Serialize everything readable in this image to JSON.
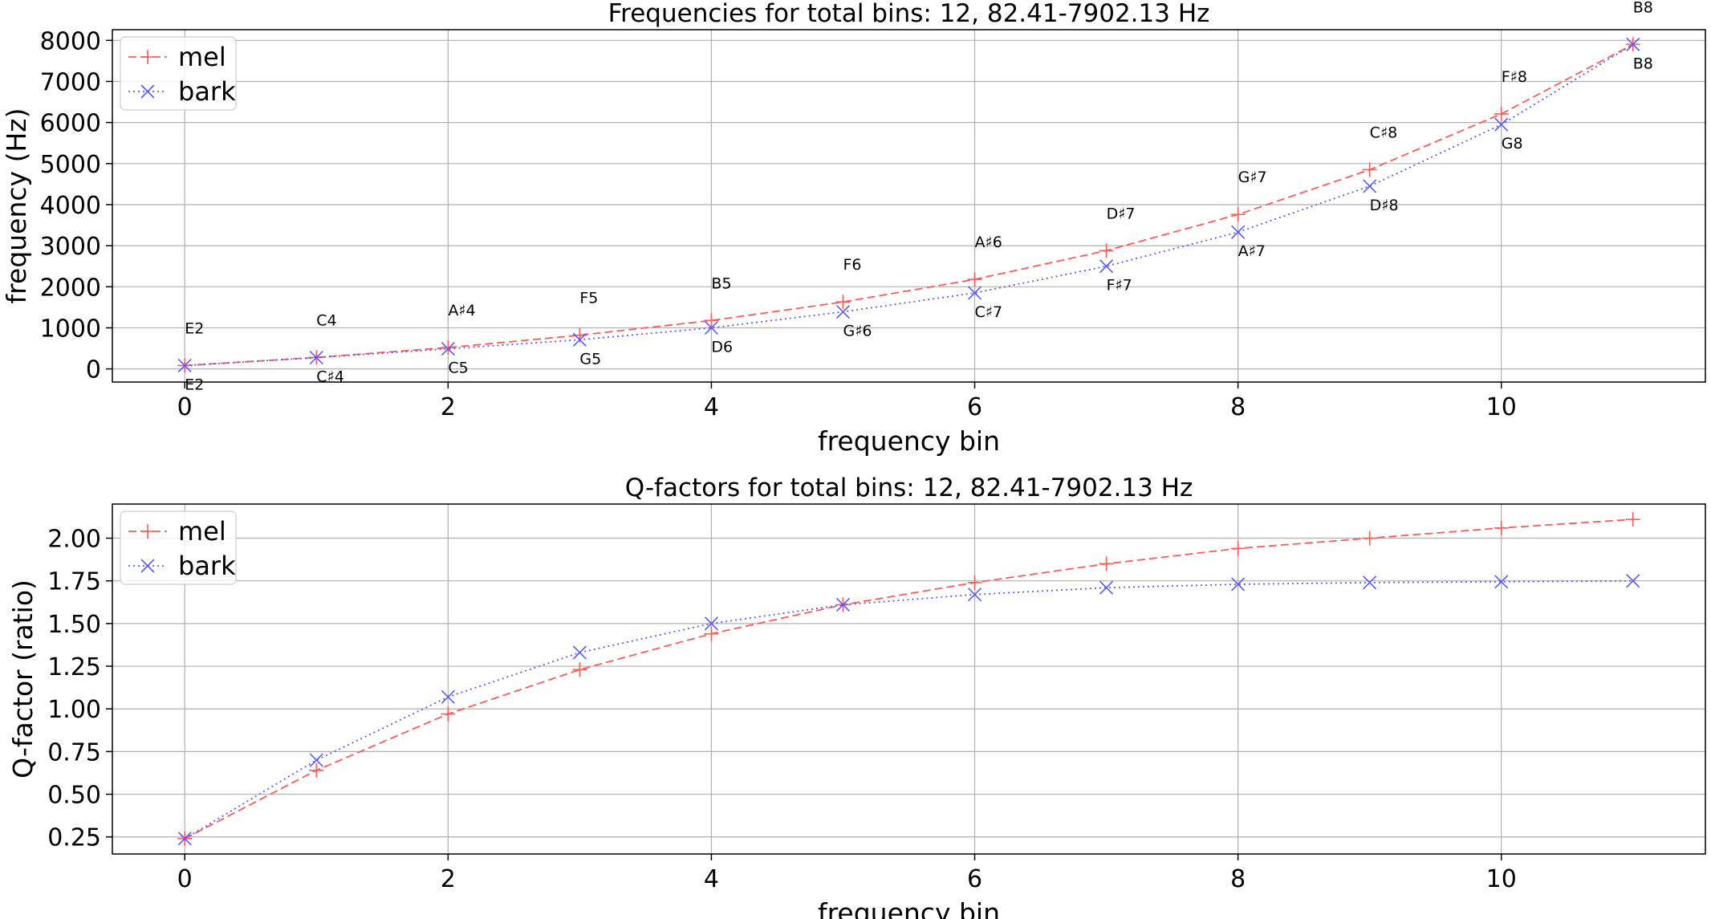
{
  "colors": {
    "mel": "#ff5a5a",
    "bark": "#5a5aff",
    "grid": "#b0b0b0",
    "axis": "#000000",
    "background": "#ffffff"
  },
  "chart_data": [
    {
      "type": "line",
      "title": "Frequencies for total bins: 12, 82.41-7902.13 Hz",
      "xlabel": "frequency bin",
      "ylabel": "frequency (Hz)",
      "xlim": [
        -0.55,
        11.55
      ],
      "ylim": [
        -320,
        8260
      ],
      "xticks": [
        0,
        2,
        4,
        6,
        8,
        10
      ],
      "xtick_labels": [
        "0",
        "2",
        "4",
        "6",
        "8",
        "10"
      ],
      "yticks": [
        0,
        1000,
        2000,
        3000,
        4000,
        5000,
        6000,
        7000,
        8000
      ],
      "ytick_labels": [
        "0",
        "1000",
        "2000",
        "3000",
        "4000",
        "5000",
        "6000",
        "7000",
        "8000"
      ],
      "grid": true,
      "legend": "upper-left",
      "x": [
        0,
        1,
        2,
        3,
        4,
        5,
        6,
        7,
        8,
        9,
        10,
        11
      ],
      "series": [
        {
          "name": "mel",
          "style": "dashed",
          "marker": "+",
          "values": [
            82,
            280,
            520,
            820,
            1180,
            1630,
            2180,
            2880,
            3760,
            4850,
            6210,
            7902
          ],
          "note_labels": [
            "E2",
            "C4",
            "A♯4",
            "F5",
            "B5",
            "F6",
            "A♯6",
            "D♯7",
            "G♯7",
            "C♯8",
            "F♯8",
            "B8"
          ]
        },
        {
          "name": "bark",
          "style": "dotted",
          "marker": "x",
          "values": [
            82,
            275,
            490,
            710,
            1000,
            1390,
            1850,
            2500,
            3330,
            4450,
            5950,
            7902
          ],
          "note_labels": [
            "E2",
            "C♯4",
            "C5",
            "G5",
            "D6",
            "G♯6",
            "C♯7",
            "F♯7",
            "A♯7",
            "D♯8",
            "G8",
            "B8"
          ]
        }
      ]
    },
    {
      "type": "line",
      "title": "Q-factors for total bins: 12, 82.41-7902.13 Hz",
      "xlabel": "frequency bin",
      "ylabel": "Q-factor (ratio)",
      "xlim": [
        -0.55,
        11.55
      ],
      "ylim": [
        0.15,
        2.2
      ],
      "xticks": [
        0,
        2,
        4,
        6,
        8,
        10
      ],
      "xtick_labels": [
        "0",
        "2",
        "4",
        "6",
        "8",
        "10"
      ],
      "yticks": [
        0.25,
        0.5,
        0.75,
        1.0,
        1.25,
        1.5,
        1.75,
        2.0
      ],
      "ytick_labels": [
        "0.25",
        "0.50",
        "0.75",
        "1.00",
        "1.25",
        "1.50",
        "1.75",
        "2.00"
      ],
      "grid": true,
      "legend": "upper-left",
      "x": [
        0,
        1,
        2,
        3,
        4,
        5,
        6,
        7,
        8,
        9,
        10,
        11
      ],
      "series": [
        {
          "name": "mel",
          "style": "dashed",
          "marker": "+",
          "values": [
            0.24,
            0.64,
            0.97,
            1.23,
            1.44,
            1.61,
            1.74,
            1.85,
            1.94,
            2.0,
            2.06,
            2.11
          ]
        },
        {
          "name": "bark",
          "style": "dotted",
          "marker": "x",
          "values": [
            0.24,
            0.7,
            1.07,
            1.33,
            1.5,
            1.61,
            1.67,
            1.71,
            1.73,
            1.74,
            1.745,
            1.75
          ]
        }
      ]
    }
  ]
}
